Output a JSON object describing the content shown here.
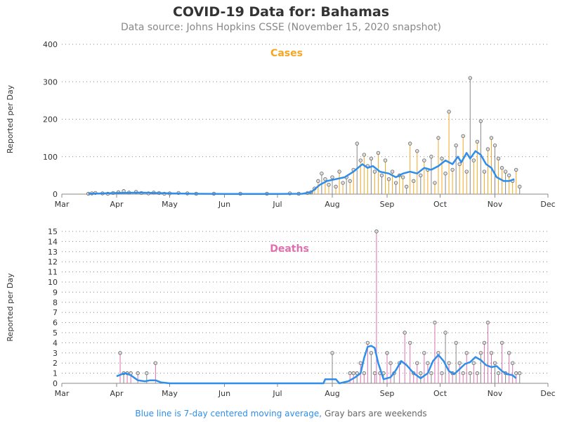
{
  "header": {
    "title": "COVID-19 Data for: Bahamas",
    "subtitle": "Data source: Johns Hopkins CSSE (November 15, 2020 snapshot)"
  },
  "footnote": {
    "blue_part": "Blue line is 7-day centered moving average,",
    "gray_part": "Gray bars are weekends"
  },
  "colors": {
    "cases": "#f5a623",
    "deaths": "#e06fb0",
    "moving_average": "#2f8ee9",
    "weekend": "#888888"
  },
  "chart_data": [
    {
      "type": "bar",
      "name": "Cases",
      "title": "Cases",
      "ylabel": "Reported per Day",
      "xlabel": "",
      "x_ticks": [
        "Mar",
        "Apr",
        "May",
        "Jun",
        "Jul",
        "Aug",
        "Sep",
        "Oct",
        "Nov",
        "Dec"
      ],
      "x_range": [
        "2020-03-01",
        "2020-12-01"
      ],
      "y_ticks": [
        0,
        100,
        200,
        300,
        400
      ],
      "ylim": [
        0,
        400
      ],
      "grid": "horizontal dotted",
      "series": [
        {
          "name": "Cases",
          "points": [
            [
              "2020-03-16",
              1
            ],
            [
              "2020-03-18",
              2
            ],
            [
              "2020-03-20",
              3
            ],
            [
              "2020-03-24",
              2
            ],
            [
              "2020-03-27",
              1
            ],
            [
              "2020-03-30",
              3
            ],
            [
              "2020-04-02",
              5
            ],
            [
              "2020-04-05",
              8
            ],
            [
              "2020-04-08",
              4
            ],
            [
              "2020-04-12",
              6
            ],
            [
              "2020-04-15",
              3
            ],
            [
              "2020-04-19",
              2
            ],
            [
              "2020-04-22",
              4
            ],
            [
              "2020-04-25",
              3
            ],
            [
              "2020-04-28",
              1
            ],
            [
              "2020-05-01",
              2
            ],
            [
              "2020-05-06",
              3
            ],
            [
              "2020-05-11",
              2
            ],
            [
              "2020-05-16",
              1
            ],
            [
              "2020-05-26",
              1
            ],
            [
              "2020-06-10",
              1
            ],
            [
              "2020-06-25",
              1
            ],
            [
              "2020-07-08",
              2
            ],
            [
              "2020-07-13",
              1
            ],
            [
              "2020-07-18",
              3
            ],
            [
              "2020-07-20",
              5
            ],
            [
              "2020-07-22",
              15
            ],
            [
              "2020-07-24",
              35
            ],
            [
              "2020-07-26",
              55
            ],
            [
              "2020-07-28",
              40
            ],
            [
              "2020-07-30",
              25
            ],
            [
              "2020-08-01",
              45
            ],
            [
              "2020-08-03",
              20
            ],
            [
              "2020-08-05",
              60
            ],
            [
              "2020-08-07",
              30
            ],
            [
              "2020-08-09",
              45
            ],
            [
              "2020-08-11",
              35
            ],
            [
              "2020-08-13",
              65
            ],
            [
              "2020-08-15",
              135
            ],
            [
              "2020-08-17",
              90
            ],
            [
              "2020-08-19",
              105
            ],
            [
              "2020-08-21",
              75
            ],
            [
              "2020-08-23",
              95
            ],
            [
              "2020-08-25",
              60
            ],
            [
              "2020-08-27",
              110
            ],
            [
              "2020-08-29",
              50
            ],
            [
              "2020-08-31",
              90
            ],
            [
              "2020-09-02",
              40
            ],
            [
              "2020-09-04",
              60
            ],
            [
              "2020-09-06",
              30
            ],
            [
              "2020-09-08",
              50
            ],
            [
              "2020-09-10",
              45
            ],
            [
              "2020-09-12",
              20
            ],
            [
              "2020-09-14",
              135
            ],
            [
              "2020-09-16",
              35
            ],
            [
              "2020-09-18",
              115
            ],
            [
              "2020-09-20",
              50
            ],
            [
              "2020-09-22",
              90
            ],
            [
              "2020-09-24",
              65
            ],
            [
              "2020-09-26",
              100
            ],
            [
              "2020-09-28",
              30
            ],
            [
              "2020-09-30",
              150
            ],
            [
              "2020-10-02",
              95
            ],
            [
              "2020-10-04",
              55
            ],
            [
              "2020-10-06",
              220
            ],
            [
              "2020-10-08",
              65
            ],
            [
              "2020-10-10",
              130
            ],
            [
              "2020-10-12",
              80
            ],
            [
              "2020-10-14",
              155
            ],
            [
              "2020-10-16",
              60
            ],
            [
              "2020-10-18",
              310
            ],
            [
              "2020-10-20",
              90
            ],
            [
              "2020-10-22",
              140
            ],
            [
              "2020-10-24",
              195
            ],
            [
              "2020-10-26",
              60
            ],
            [
              "2020-10-28",
              120
            ],
            [
              "2020-10-30",
              150
            ],
            [
              "2020-11-01",
              130
            ],
            [
              "2020-11-03",
              95
            ],
            [
              "2020-11-05",
              70
            ],
            [
              "2020-11-07",
              60
            ],
            [
              "2020-11-09",
              50
            ],
            [
              "2020-11-11",
              35
            ],
            [
              "2020-11-13",
              65
            ],
            [
              "2020-11-15",
              20
            ]
          ]
        },
        {
          "name": "7-day centered moving average",
          "points": [
            [
              "2020-03-16",
              1
            ],
            [
              "2020-04-01",
              3
            ],
            [
              "2020-04-15",
              4
            ],
            [
              "2020-05-01",
              2
            ],
            [
              "2020-05-15",
              1
            ],
            [
              "2020-06-01",
              0.5
            ],
            [
              "2020-06-15",
              0.5
            ],
            [
              "2020-07-01",
              0.5
            ],
            [
              "2020-07-15",
              1
            ],
            [
              "2020-07-20",
              5
            ],
            [
              "2020-07-25",
              25
            ],
            [
              "2020-07-29",
              35
            ],
            [
              "2020-08-03",
              40
            ],
            [
              "2020-08-08",
              45
            ],
            [
              "2020-08-13",
              60
            ],
            [
              "2020-08-18",
              80
            ],
            [
              "2020-08-21",
              70
            ],
            [
              "2020-08-24",
              75
            ],
            [
              "2020-08-28",
              60
            ],
            [
              "2020-09-02",
              55
            ],
            [
              "2020-09-06",
              45
            ],
            [
              "2020-09-10",
              55
            ],
            [
              "2020-09-14",
              60
            ],
            [
              "2020-09-18",
              55
            ],
            [
              "2020-09-22",
              70
            ],
            [
              "2020-09-26",
              65
            ],
            [
              "2020-09-30",
              75
            ],
            [
              "2020-10-04",
              90
            ],
            [
              "2020-10-08",
              80
            ],
            [
              "2020-10-11",
              100
            ],
            [
              "2020-10-13",
              85
            ],
            [
              "2020-10-16",
              110
            ],
            [
              "2020-10-18",
              95
            ],
            [
              "2020-10-21",
              115
            ],
            [
              "2020-10-24",
              105
            ],
            [
              "2020-10-27",
              80
            ],
            [
              "2020-10-30",
              70
            ],
            [
              "2020-11-02",
              45
            ],
            [
              "2020-11-06",
              35
            ],
            [
              "2020-11-09",
              35
            ],
            [
              "2020-11-12",
              40
            ]
          ]
        }
      ]
    },
    {
      "type": "bar",
      "name": "Deaths",
      "title": "Deaths",
      "ylabel": "Reported per Day",
      "xlabel": "",
      "x_ticks": [
        "Mar",
        "Apr",
        "May",
        "Jun",
        "Jul",
        "Aug",
        "Sep",
        "Oct",
        "Nov",
        "Dec"
      ],
      "x_range": [
        "2020-03-01",
        "2020-12-01"
      ],
      "y_ticks": [
        0,
        1,
        2,
        3,
        4,
        5,
        6,
        7,
        8,
        9,
        10,
        11,
        12,
        13,
        14,
        15
      ],
      "ylim": [
        0,
        15
      ],
      "grid": "horizontal dotted",
      "series": [
        {
          "name": "Deaths",
          "points": [
            [
              "2020-04-03",
              3
            ],
            [
              "2020-04-05",
              1
            ],
            [
              "2020-04-07",
              1
            ],
            [
              "2020-04-09",
              1
            ],
            [
              "2020-04-13",
              1
            ],
            [
              "2020-04-18",
              1
            ],
            [
              "2020-04-23",
              2
            ],
            [
              "2020-08-01",
              3
            ],
            [
              "2020-08-11",
              1
            ],
            [
              "2020-08-13",
              1
            ],
            [
              "2020-08-15",
              1
            ],
            [
              "2020-08-17",
              2
            ],
            [
              "2020-08-19",
              1
            ],
            [
              "2020-08-21",
              4
            ],
            [
              "2020-08-23",
              3
            ],
            [
              "2020-08-25",
              1
            ],
            [
              "2020-08-26",
              15
            ],
            [
              "2020-08-28",
              1
            ],
            [
              "2020-08-30",
              1
            ],
            [
              "2020-09-01",
              3
            ],
            [
              "2020-09-03",
              2
            ],
            [
              "2020-09-05",
              1
            ],
            [
              "2020-09-08",
              2
            ],
            [
              "2020-09-11",
              5
            ],
            [
              "2020-09-14",
              4
            ],
            [
              "2020-09-16",
              1
            ],
            [
              "2020-09-18",
              2
            ],
            [
              "2020-09-20",
              1
            ],
            [
              "2020-09-22",
              3
            ],
            [
              "2020-09-24",
              2
            ],
            [
              "2020-09-26",
              1
            ],
            [
              "2020-09-28",
              6
            ],
            [
              "2020-09-30",
              3
            ],
            [
              "2020-10-02",
              1
            ],
            [
              "2020-10-04",
              5
            ],
            [
              "2020-10-06",
              2
            ],
            [
              "2020-10-08",
              1
            ],
            [
              "2020-10-10",
              4
            ],
            [
              "2020-10-12",
              2
            ],
            [
              "2020-10-14",
              1
            ],
            [
              "2020-10-16",
              3
            ],
            [
              "2020-10-18",
              1
            ],
            [
              "2020-10-20",
              2
            ],
            [
              "2020-10-22",
              1
            ],
            [
              "2020-10-24",
              3
            ],
            [
              "2020-10-26",
              4
            ],
            [
              "2020-10-28",
              6
            ],
            [
              "2020-10-30",
              3
            ],
            [
              "2020-11-01",
              2
            ],
            [
              "2020-11-03",
              1
            ],
            [
              "2020-11-05",
              4
            ],
            [
              "2020-11-07",
              1
            ],
            [
              "2020-11-09",
              3
            ],
            [
              "2020-11-11",
              2
            ],
            [
              "2020-11-13",
              1
            ],
            [
              "2020-11-15",
              1
            ]
          ]
        },
        {
          "name": "7-day centered moving average",
          "points": [
            [
              "2020-04-01",
              0.7
            ],
            [
              "2020-04-04",
              0.9
            ],
            [
              "2020-04-06",
              1
            ],
            [
              "2020-04-09",
              0.8
            ],
            [
              "2020-04-13",
              0.3
            ],
            [
              "2020-04-17",
              0.2
            ],
            [
              "2020-04-20",
              0.3
            ],
            [
              "2020-04-23",
              0.3
            ],
            [
              "2020-04-26",
              0.1
            ],
            [
              "2020-05-01",
              0
            ],
            [
              "2020-07-27",
              0
            ],
            [
              "2020-07-28",
              0.4
            ],
            [
              "2020-08-03",
              0.4
            ],
            [
              "2020-08-05",
              0
            ],
            [
              "2020-08-10",
              0.2
            ],
            [
              "2020-08-14",
              0.6
            ],
            [
              "2020-08-17",
              1
            ],
            [
              "2020-08-19",
              2.5
            ],
            [
              "2020-08-21",
              3.6
            ],
            [
              "2020-08-23",
              3.7
            ],
            [
              "2020-08-25",
              3.5
            ],
            [
              "2020-08-27",
              2
            ],
            [
              "2020-08-30",
              0.4
            ],
            [
              "2020-09-03",
              0.6
            ],
            [
              "2020-09-06",
              1.3
            ],
            [
              "2020-09-09",
              2.2
            ],
            [
              "2020-09-12",
              1.8
            ],
            [
              "2020-09-16",
              1
            ],
            [
              "2020-09-20",
              0.5
            ],
            [
              "2020-09-24",
              1
            ],
            [
              "2020-09-27",
              2.2
            ],
            [
              "2020-09-30",
              2.8
            ],
            [
              "2020-10-03",
              2.2
            ],
            [
              "2020-10-06",
              1.2
            ],
            [
              "2020-10-09",
              0.9
            ],
            [
              "2020-10-12",
              1.4
            ],
            [
              "2020-10-15",
              1.9
            ],
            [
              "2020-10-18",
              2.1
            ],
            [
              "2020-10-21",
              2.6
            ],
            [
              "2020-10-24",
              2.3
            ],
            [
              "2020-10-27",
              1.8
            ],
            [
              "2020-10-30",
              1.6
            ],
            [
              "2020-11-02",
              1.7
            ],
            [
              "2020-11-05",
              1.2
            ],
            [
              "2020-11-08",
              0.9
            ],
            [
              "2020-11-11",
              0.8
            ],
            [
              "2020-11-13",
              0.5
            ]
          ]
        }
      ]
    }
  ]
}
